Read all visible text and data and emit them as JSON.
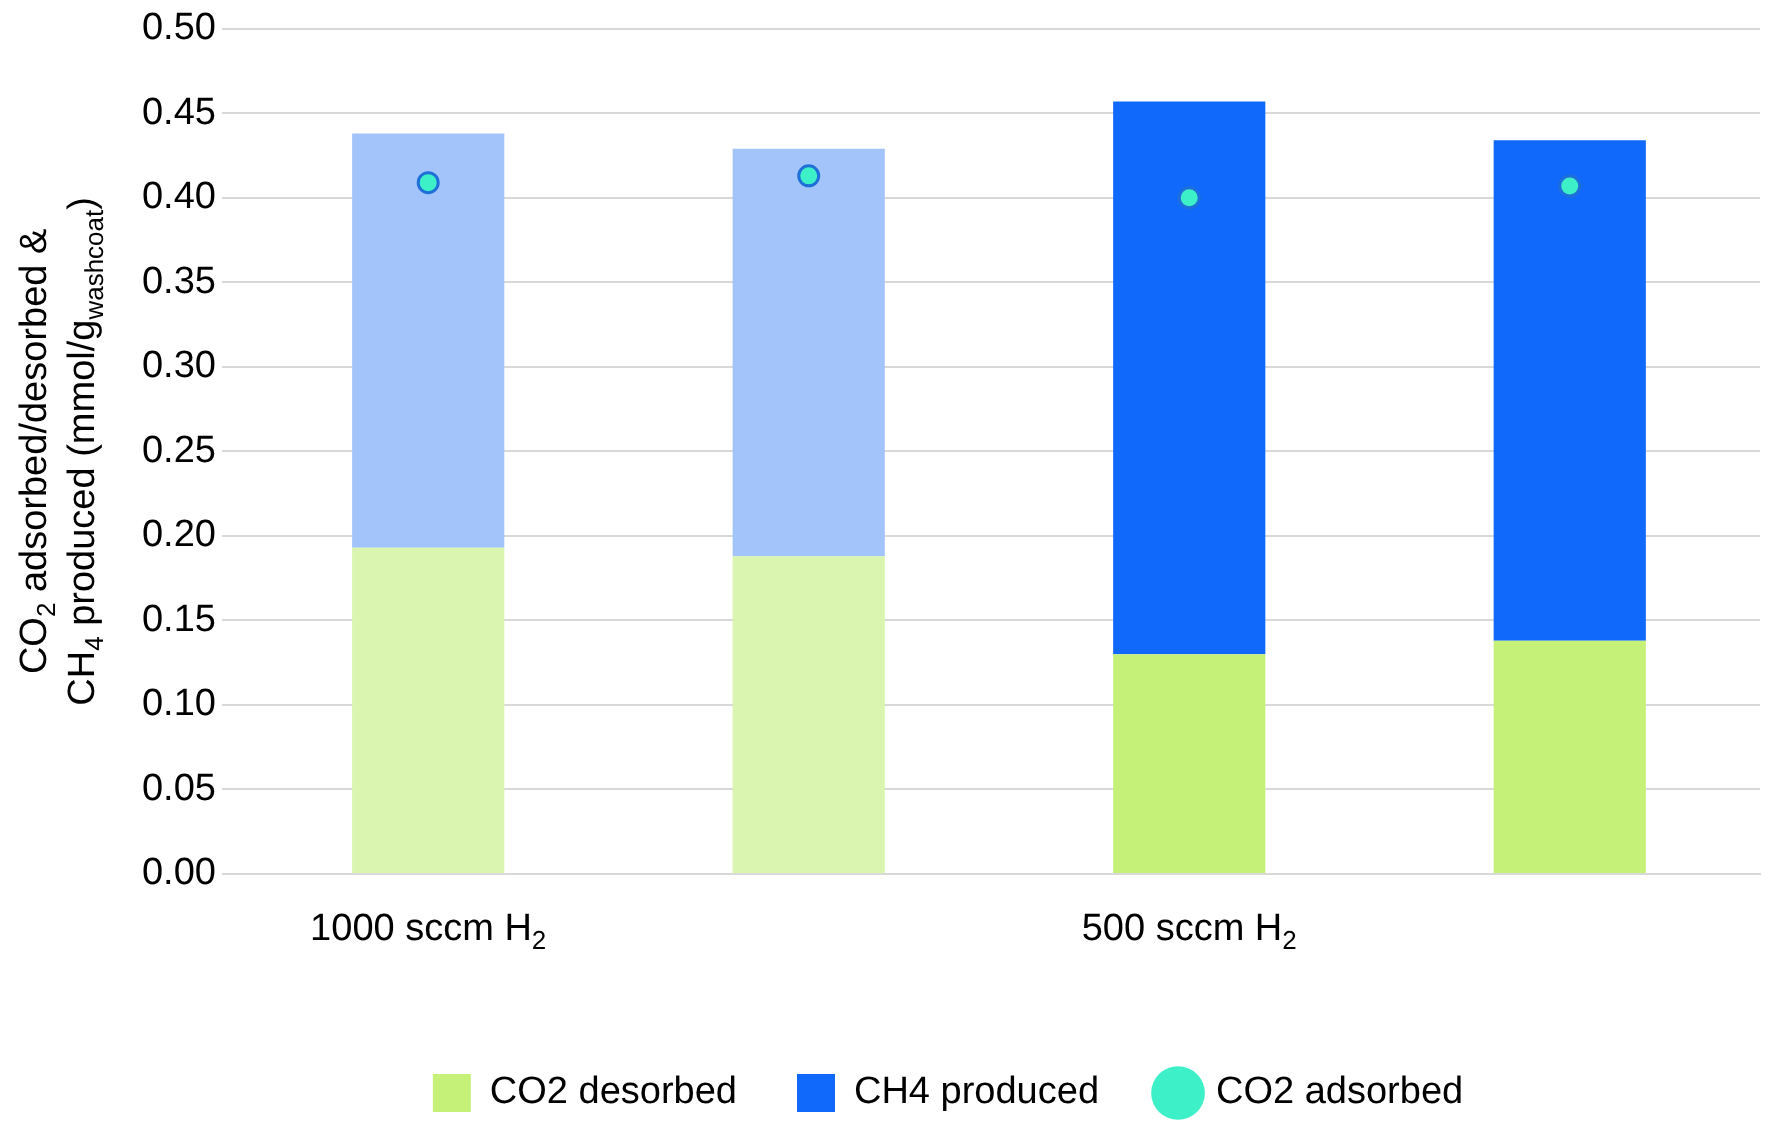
{
  "chart_data": {
    "type": "bar",
    "stacked": true,
    "ylabel": "CO$_{2}$ adsorbed/desorbed &\nCH$_{4}$ produced (mmol/g$_{washcoat}$)",
    "categories": [
      "1000 sccm H$_{2}$",
      null,
      "500 sccm H$_{2}$",
      null
    ],
    "ylim": [
      0,
      0.5
    ],
    "yticks": [
      {
        "value": 0,
        "label": "0.00"
      },
      {
        "value": 0.05,
        "label": "0.05"
      },
      {
        "value": 0.1,
        "label": "0.10"
      },
      {
        "value": 0.15,
        "label": "0.15"
      },
      {
        "value": 0.2,
        "label": "0.20"
      },
      {
        "value": 0.25,
        "label": "0.25"
      },
      {
        "value": 0.3,
        "label": "0.30"
      },
      {
        "value": 0.35,
        "label": "0.35"
      },
      {
        "value": 0.4,
        "label": "0.40"
      },
      {
        "value": 0.45,
        "label": "0.45"
      },
      {
        "value": 0.5,
        "label": "0.50"
      }
    ],
    "grid": "y",
    "legend": "bottom",
    "series": [
      {
        "name": "CO2 desorbed",
        "color": "#c6f178",
        "colors": [
          "#d9f5b0",
          "#d9f5b0",
          "#c6f178",
          "#c6f178"
        ],
        "values": [
          0.193,
          0.188,
          0.13,
          0.138
        ]
      },
      {
        "name": "CH4 produced",
        "color": "#1169fb",
        "colors": [
          "#a3c4fa",
          "#a3c4fa",
          "#1169fb",
          "#1169fb"
        ],
        "values": [
          0.245,
          0.241,
          0.327,
          0.296
        ]
      },
      {
        "name": "CO2 adsorbed",
        "type": "scatter",
        "marker": "circle",
        "color": "#3ef0c8",
        "values": [
          0.409,
          0.413,
          0.4,
          0.407
        ]
      }
    ]
  }
}
